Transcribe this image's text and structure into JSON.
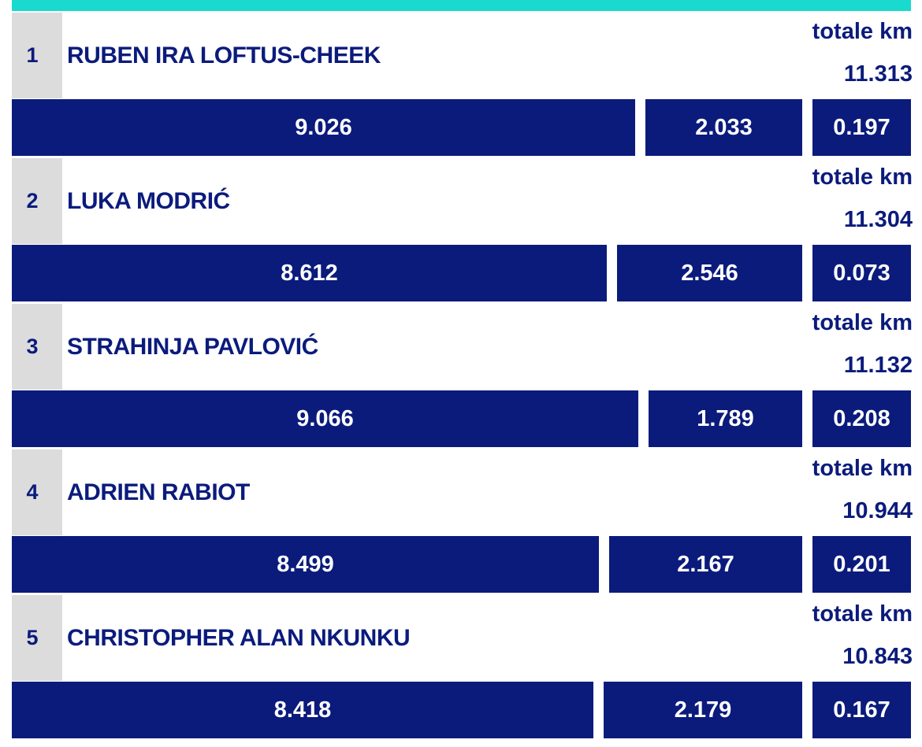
{
  "colors": {
    "accent": "#1ad9cf",
    "bar": "#0b1b7c",
    "text": "#0b1b7c",
    "rank_cell": "#dcdcdc",
    "bar_text": "#ffffff"
  },
  "total_label": "totale km",
  "chart_data": {
    "type": "bar",
    "orientation": "horizontal-stacked",
    "categories": [
      "RUBEN IRA LOFTUS-CHEEK",
      "LUKA MODRIĆ",
      "STRAHINJA PAVLOVIĆ",
      "ADRIEN RABIOT",
      "CHRISTOPHER ALAN NKUNKU"
    ],
    "ranks": [
      "1",
      "2",
      "3",
      "4",
      "5"
    ],
    "totals": [
      "11.313",
      "11.304",
      "11.132",
      "10.944",
      "10.843"
    ],
    "series": [
      {
        "values": [
          "9.026",
          "8.612",
          "9.066",
          "8.499",
          "8.418"
        ]
      },
      {
        "values": [
          "2.033",
          "2.546",
          "1.789",
          "2.167",
          "2.179"
        ]
      },
      {
        "values": [
          "0.197",
          "0.073",
          "0.208",
          "0.201",
          "0.167"
        ]
      }
    ]
  }
}
